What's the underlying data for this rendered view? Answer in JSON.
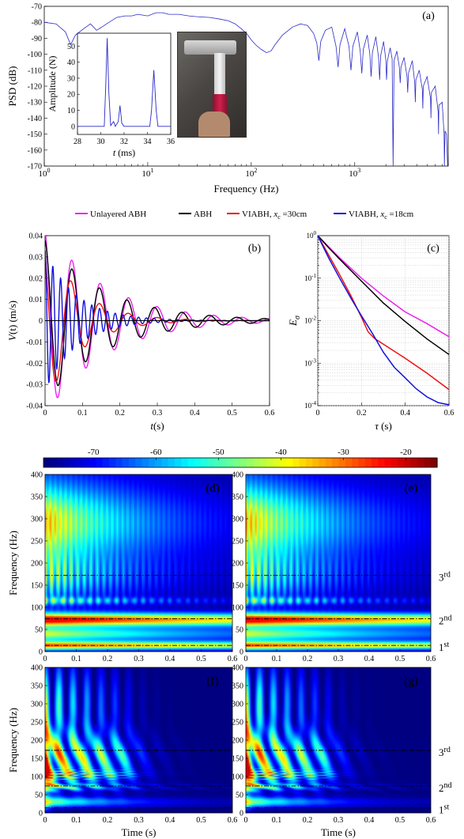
{
  "legend": [
    {
      "name": "Unlayered ABH",
      "color": "#ee22ee"
    },
    {
      "name": "ABH",
      "color": "#000000"
    },
    {
      "name": "VIABH, x_c=30cm",
      "label_main": "VIABH, ",
      "label_var": "x",
      "label_sub": "c",
      "label_rest": " =30cm",
      "color": "#ee1111"
    },
    {
      "name": "VIABH, x_c=18cm",
      "label_main": "VIABH, ",
      "label_var": "x",
      "label_sub": "c",
      "label_rest": " =18cm",
      "color": "#1111dd"
    }
  ],
  "chart_data": [
    {
      "id": "a",
      "panel_label": "(a)",
      "type": "line",
      "xscale": "log",
      "xlabel": "Frequency (Hz)",
      "ylabel": "PSD (dB)",
      "xlim": [
        1,
        8000
      ],
      "ylim": [
        -170,
        -70
      ],
      "yticks": [
        -70,
        -80,
        -90,
        -100,
        -110,
        -120,
        -130,
        -140,
        -150,
        -160,
        -170
      ],
      "xticks": [
        {
          "v": 1,
          "m": "10",
          "e": "0"
        },
        {
          "v": 10,
          "m": "10",
          "e": "1"
        },
        {
          "v": 100,
          "m": "10",
          "e": "2"
        },
        {
          "v": 1000,
          "m": "10",
          "e": "3"
        }
      ],
      "color": "#2a2ac8",
      "points": [
        [
          1,
          -80
        ],
        [
          1.3,
          -81
        ],
        [
          1.6,
          -86
        ],
        [
          1.8,
          -94
        ],
        [
          2.0,
          -88
        ],
        [
          2.4,
          -84
        ],
        [
          2.8,
          -81
        ],
        [
          3.2,
          -85
        ],
        [
          3.6,
          -83
        ],
        [
          4,
          -81
        ],
        [
          5,
          -77
        ],
        [
          6,
          -76
        ],
        [
          7,
          -76
        ],
        [
          8,
          -75
        ],
        [
          10,
          -76
        ],
        [
          12,
          -74
        ],
        [
          14,
          -74
        ],
        [
          16,
          -75
        ],
        [
          20,
          -75
        ],
        [
          25,
          -76
        ],
        [
          30,
          -76.5
        ],
        [
          40,
          -77
        ],
        [
          50,
          -78
        ],
        [
          60,
          -79
        ],
        [
          70,
          -81
        ],
        [
          80,
          -84
        ],
        [
          90,
          -87
        ],
        [
          100,
          -91
        ],
        [
          110,
          -94
        ],
        [
          125,
          -97
        ],
        [
          140,
          -99
        ],
        [
          155,
          -98
        ],
        [
          170,
          -94
        ],
        [
          200,
          -88
        ],
        [
          250,
          -83
        ],
        [
          300,
          -81
        ],
        [
          350,
          -82
        ],
        [
          400,
          -87
        ],
        [
          430,
          -93
        ],
        [
          450,
          -104
        ],
        [
          470,
          -92
        ],
        [
          520,
          -85
        ],
        [
          600,
          -83
        ],
        [
          660,
          -95
        ],
        [
          690,
          -108
        ],
        [
          720,
          -94
        ],
        [
          800,
          -84
        ],
        [
          880,
          -95
        ],
        [
          920,
          -110
        ],
        [
          960,
          -95
        ],
        [
          1060,
          -86
        ],
        [
          1130,
          -98
        ],
        [
          1170,
          -112
        ],
        [
          1210,
          -97
        ],
        [
          1320,
          -88
        ],
        [
          1400,
          -100
        ],
        [
          1440,
          -114
        ],
        [
          1480,
          -99
        ],
        [
          1600,
          -89
        ],
        [
          1700,
          -102
        ],
        [
          1740,
          -116
        ],
        [
          1780,
          -101
        ],
        [
          1900,
          -92
        ],
        [
          2000,
          -104
        ],
        [
          2030,
          -116
        ],
        [
          2070,
          -104
        ],
        [
          2200,
          -96
        ],
        [
          2300,
          -103
        ],
        [
          2350,
          -170
        ],
        [
          2400,
          -104
        ],
        [
          2550,
          -98
        ],
        [
          2700,
          -108
        ],
        [
          2750,
          -118
        ],
        [
          2800,
          -108
        ],
        [
          3000,
          -102
        ],
        [
          3200,
          -114
        ],
        [
          3250,
          -124
        ],
        [
          3300,
          -112
        ],
        [
          3600,
          -104
        ],
        [
          3800,
          -118
        ],
        [
          3850,
          -130
        ],
        [
          3900,
          -116
        ],
        [
          4200,
          -110
        ],
        [
          4500,
          -122
        ],
        [
          4550,
          -134
        ],
        [
          4600,
          -120
        ],
        [
          5000,
          -114
        ],
        [
          5400,
          -128
        ],
        [
          5450,
          -140
        ],
        [
          5500,
          -124
        ],
        [
          6000,
          -120
        ],
        [
          6400,
          -136
        ],
        [
          6450,
          -150
        ],
        [
          6500,
          -132
        ],
        [
          7000,
          -130
        ],
        [
          7300,
          -150
        ],
        [
          7350,
          -170
        ],
        [
          7450,
          -148
        ],
        [
          7700,
          -150
        ],
        [
          7900,
          -170
        ]
      ]
    },
    {
      "id": "a_inset",
      "type": "line",
      "xlabel": "t (ms)",
      "xlabel_var": "t",
      "xlabel_rest": " (ms)",
      "ylabel": "Amplitude (N)",
      "xlim": [
        28,
        36
      ],
      "ylim": [
        -5,
        58
      ],
      "xticks": [
        28,
        30,
        32,
        34,
        36
      ],
      "yticks": [
        0,
        10,
        20,
        30,
        40,
        50
      ],
      "color": "#2a2ac8",
      "points": [
        [
          28,
          0
        ],
        [
          30.3,
          0
        ],
        [
          30.45,
          30
        ],
        [
          30.55,
          55
        ],
        [
          30.7,
          20
        ],
        [
          30.85,
          0.5
        ],
        [
          31.1,
          3
        ],
        [
          31.25,
          0
        ],
        [
          31.5,
          3
        ],
        [
          31.65,
          13
        ],
        [
          31.8,
          2
        ],
        [
          32.0,
          0
        ],
        [
          34.2,
          0
        ],
        [
          34.35,
          10
        ],
        [
          34.55,
          35
        ],
        [
          34.75,
          10
        ],
        [
          34.9,
          0
        ],
        [
          36,
          0
        ]
      ]
    },
    {
      "id": "b",
      "panel_label": "(b)",
      "type": "line",
      "xlabel": "t(s)",
      "xlabel_var": "t",
      "xlabel_rest": "(s)",
      "ylabel": "V(t) (m/s)",
      "xlim": [
        0,
        0.6
      ],
      "ylim": [
        -0.04,
        0.04
      ],
      "xticks": [
        0,
        0.1,
        0.2,
        0.3,
        0.4,
        0.5,
        0.6
      ],
      "yticks": [
        0.04,
        0.03,
        0.02,
        0.01,
        0,
        -0.01,
        -0.02,
        -0.03,
        -0.04
      ],
      "series": [
        {
          "name": "Unlayered ABH",
          "color": "#ee22ee",
          "amp": 0.045,
          "decay": 6.4,
          "freq": 13.2,
          "phase": 0.3
        },
        {
          "name": "ABH",
          "color": "#000000",
          "amp": 0.038,
          "decay": 6.2,
          "freq": 13.6,
          "phase": 0.1
        },
        {
          "name": "VIABH, x_c=30cm",
          "color": "#ee1111",
          "amp": 0.04,
          "decay": 11,
          "freq": 13.0,
          "phase": 0.6
        },
        {
          "name": "VIABH, x_c=18cm",
          "color": "#1111dd",
          "amp": 0.033,
          "decay": 12,
          "freq": 48,
          "phase": 0.0
        }
      ]
    },
    {
      "id": "c",
      "panel_label": "(c)",
      "type": "line",
      "yscale": "log",
      "xlabel": "τ (s)",
      "xlabel_var": "τ",
      "xlabel_rest": " (s)",
      "ylabel": "E_σ",
      "xlim": [
        0,
        0.6
      ],
      "ylim": [
        0.0001,
        1
      ],
      "xticks": [
        0,
        0.2,
        0.4,
        0.6
      ],
      "yticks": [
        {
          "v": 1,
          "m": "10",
          "e": "0"
        },
        {
          "v": 0.1,
          "m": "10",
          "e": "-1"
        },
        {
          "v": 0.01,
          "m": "10",
          "e": "-2"
        },
        {
          "v": 0.001,
          "m": "10",
          "e": "-3"
        },
        {
          "v": 0.0001,
          "m": "10",
          "e": "-4"
        }
      ],
      "series": [
        {
          "name": "Unlayered ABH",
          "color": "#ee22ee",
          "points": [
            [
              0,
              1
            ],
            [
              0.05,
              0.55
            ],
            [
              0.1,
              0.3
            ],
            [
              0.2,
              0.1
            ],
            [
              0.3,
              0.038
            ],
            [
              0.4,
              0.016
            ],
            [
              0.5,
              0.0085
            ],
            [
              0.6,
              0.0042
            ]
          ]
        },
        {
          "name": "ABH",
          "color": "#000000",
          "points": [
            [
              0,
              1
            ],
            [
              0.05,
              0.52
            ],
            [
              0.1,
              0.28
            ],
            [
              0.2,
              0.085
            ],
            [
              0.3,
              0.026
            ],
            [
              0.4,
              0.0095
            ],
            [
              0.5,
              0.0037
            ],
            [
              0.6,
              0.0016
            ]
          ]
        },
        {
          "name": "VIABH, x_c=30cm",
          "color": "#ee1111",
          "points": [
            [
              0,
              1
            ],
            [
              0.05,
              0.35
            ],
            [
              0.1,
              0.12
            ],
            [
              0.15,
              0.04
            ],
            [
              0.2,
              0.012
            ],
            [
              0.23,
              0.0055
            ],
            [
              0.26,
              0.0038
            ],
            [
              0.3,
              0.0028
            ],
            [
              0.4,
              0.0013
            ],
            [
              0.5,
              0.00058
            ],
            [
              0.6,
              0.00024
            ]
          ]
        },
        {
          "name": "VIABH, x_c=18cm",
          "color": "#1111dd",
          "points": [
            [
              0,
              1
            ],
            [
              0.05,
              0.3
            ],
            [
              0.1,
              0.1
            ],
            [
              0.15,
              0.035
            ],
            [
              0.2,
              0.013
            ],
            [
              0.25,
              0.005
            ],
            [
              0.3,
              0.0018
            ],
            [
              0.35,
              0.0008
            ],
            [
              0.4,
              0.00045
            ],
            [
              0.45,
              0.00025
            ],
            [
              0.5,
              0.00016
            ],
            [
              0.55,
              0.000118
            ],
            [
              0.6,
              0.000105
            ]
          ]
        }
      ]
    },
    {
      "id": "colorbar",
      "type": "heatmap",
      "clim": [
        -78,
        -15
      ],
      "ticks": [
        -70,
        -60,
        -50,
        -40,
        -30,
        -20
      ]
    },
    {
      "id": "d",
      "panel_label": "(d)",
      "type": "heatmap",
      "xlim": [
        0,
        0.6
      ],
      "ylim": [
        0,
        400
      ],
      "xticks": [
        0,
        0.1,
        0.2,
        0.3,
        0.4,
        0.5,
        0.6
      ],
      "yticks": [
        0,
        50,
        100,
        150,
        200,
        250,
        300,
        350,
        400
      ],
      "ylabel": "Frequency (Hz)",
      "xlabel": "",
      "dB_max": -25,
      "dB_min": -76,
      "decay": 2.2,
      "modes": [
        {
          "f": 14,
          "label": "1",
          "sup": "st"
        },
        {
          "f": 74,
          "label": "2",
          "sup": "nd"
        },
        {
          "f": 172,
          "label": "3",
          "sup": "rd"
        }
      ]
    },
    {
      "id": "e",
      "panel_label": "(e)",
      "type": "heatmap",
      "xlim": [
        0,
        0.6
      ],
      "ylim": [
        0,
        400
      ],
      "xticks": [
        0,
        0.1,
        0.2,
        0.3,
        0.4,
        0.5,
        0.6
      ],
      "yticks": [
        0,
        50,
        100,
        150,
        200,
        250,
        300,
        350,
        400
      ],
      "ylabel": "",
      "xlabel": "",
      "dB_max": -25,
      "dB_min": -76,
      "decay": 2.4,
      "modes": [
        {
          "f": 14,
          "label": "1",
          "sup": "st"
        },
        {
          "f": 74,
          "label": "2",
          "sup": "nd"
        },
        {
          "f": 172,
          "label": "3",
          "sup": "rd"
        }
      ]
    },
    {
      "id": "f",
      "panel_label": "(f)",
      "type": "heatmap",
      "xlim": [
        0,
        0.6
      ],
      "ylim": [
        0,
        400
      ],
      "xticks": [
        0,
        0.1,
        0.2,
        0.3,
        0.4,
        0.5,
        0.6
      ],
      "yticks": [
        0,
        50,
        100,
        150,
        200,
        250,
        300,
        350,
        400
      ],
      "ylabel": "Frequency (Hz)",
      "xlabel": "Time (s)",
      "dB_max": -25,
      "dB_min": -76,
      "decay": 6,
      "modes": [
        {
          "f": 14,
          "label": "1",
          "sup": "st"
        },
        {
          "f": 74,
          "label": "2",
          "sup": "nd"
        },
        {
          "f": 172,
          "label": "3",
          "sup": "rd"
        }
      ]
    },
    {
      "id": "g",
      "panel_label": "(g)",
      "type": "heatmap",
      "xlim": [
        0,
        0.6
      ],
      "ylim": [
        0,
        400
      ],
      "xticks": [
        0,
        0.1,
        0.2,
        0.3,
        0.4,
        0.5,
        0.6
      ],
      "yticks": [
        0,
        50,
        100,
        150,
        200,
        250,
        300,
        350,
        400
      ],
      "ylabel": "",
      "xlabel": "Time (s)",
      "dB_max": -25,
      "dB_min": -76,
      "decay": 6.5,
      "modes": [
        {
          "f": 14,
          "label": "1",
          "sup": "st"
        },
        {
          "f": 74,
          "label": "2",
          "sup": "nd"
        },
        {
          "f": 172,
          "label": "3",
          "sup": "rd"
        }
      ]
    }
  ]
}
